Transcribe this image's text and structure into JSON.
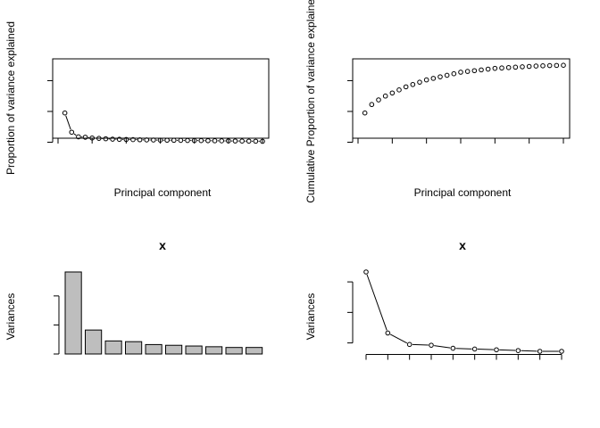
{
  "chart_data": [
    {
      "type": "line",
      "markers": "open-circle",
      "title": "",
      "xlabel": "Principal component",
      "ylabel": "Proportion of variance explained",
      "xlim": [
        0,
        30
      ],
      "ylim": [
        0,
        1
      ],
      "xticks": [
        "0",
        "5",
        "10",
        "15",
        "20",
        "25",
        "30"
      ],
      "yticks": [
        "0.0",
        "0.4",
        "0.8"
      ],
      "x": [
        1,
        2,
        3,
        4,
        5,
        6,
        7,
        8,
        9,
        10,
        11,
        12,
        13,
        14,
        15,
        16,
        17,
        18,
        19,
        20,
        21,
        22,
        23,
        24,
        25,
        26,
        27,
        28,
        29,
        30
      ],
      "y": [
        0.38,
        0.13,
        0.07,
        0.065,
        0.055,
        0.05,
        0.045,
        0.04,
        0.038,
        0.036,
        0.034,
        0.032,
        0.03,
        0.029,
        0.027,
        0.026,
        0.025,
        0.024,
        0.023,
        0.022,
        0.021,
        0.02,
        0.019,
        0.018,
        0.017,
        0.016,
        0.015,
        0.014,
        0.013,
        0.012
      ]
    },
    {
      "type": "scatter",
      "markers": "open-circle",
      "title": "",
      "xlabel": "Principal component",
      "ylabel": "Cumulative Proportion of variance explained",
      "xlim": [
        0,
        30
      ],
      "ylim": [
        0,
        1
      ],
      "xticks": [
        "0",
        "5",
        "10",
        "15",
        "20",
        "25",
        "30"
      ],
      "yticks": [
        "0.0",
        "0.4",
        "0.8"
      ],
      "x": [
        1,
        2,
        3,
        4,
        5,
        6,
        7,
        8,
        9,
        10,
        11,
        12,
        13,
        14,
        15,
        16,
        17,
        18,
        19,
        20,
        21,
        22,
        23,
        24,
        25,
        26,
        27,
        28,
        29,
        30
      ],
      "y": [
        0.38,
        0.49,
        0.55,
        0.6,
        0.64,
        0.68,
        0.72,
        0.75,
        0.78,
        0.81,
        0.83,
        0.85,
        0.87,
        0.89,
        0.91,
        0.92,
        0.93,
        0.94,
        0.95,
        0.96,
        0.965,
        0.97,
        0.975,
        0.98,
        0.985,
        0.99,
        0.993,
        0.996,
        0.998,
        1.0
      ]
    },
    {
      "type": "bar",
      "title": "x",
      "xlabel": "",
      "ylabel": "Variances",
      "ylim": [
        0,
        11.8
      ],
      "yticks": [
        "0",
        "4",
        "8"
      ],
      "categories": [
        "1",
        "2",
        "3",
        "4",
        "5",
        "6",
        "7",
        "8",
        "9",
        "10"
      ],
      "values": [
        11.3,
        3.3,
        1.8,
        1.7,
        1.3,
        1.2,
        1.1,
        1.0,
        0.9,
        0.9
      ],
      "bar_color": "#bebebe"
    },
    {
      "type": "line",
      "markers": "open-circle",
      "title": "x",
      "xlabel": "",
      "ylabel": "Variances",
      "xlim": [
        1,
        10
      ],
      "ylim": [
        0.9,
        11.3
      ],
      "xticks": [
        "1",
        "2",
        "3",
        "4",
        "5",
        "6",
        "7",
        "8",
        "9",
        "10"
      ],
      "yticks": [
        "2",
        "6",
        "10"
      ],
      "x": [
        1,
        2,
        3,
        4,
        5,
        6,
        7,
        8,
        9,
        10
      ],
      "y": [
        11.3,
        3.3,
        1.8,
        1.7,
        1.3,
        1.2,
        1.1,
        1.0,
        0.9,
        0.9
      ]
    }
  ]
}
